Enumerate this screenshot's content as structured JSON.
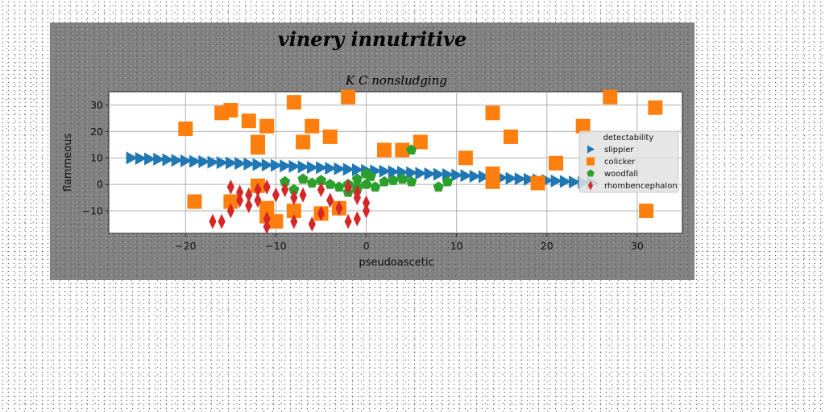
{
  "figure_title": "vinery innutritive",
  "chart_data": {
    "type": "scatter",
    "title": "K C nonsludging",
    "xlabel": "pseudoascetic",
    "ylabel": "flammeous",
    "xlim": [
      -28.5,
      35
    ],
    "ylim": [
      -18.5,
      35
    ],
    "xticks": [
      -20,
      -10,
      0,
      10,
      20,
      30
    ],
    "yticks": [
      -10,
      0,
      10,
      20,
      30
    ],
    "grid": true,
    "legend": {
      "title": "detectability",
      "placement": "center-right"
    },
    "colors": {
      "figure_bg": "#808080",
      "plot_bg": "#ffffff",
      "grid": "#b0b0b0"
    },
    "series": [
      {
        "name": "slippier",
        "marker": "triangle-right",
        "color": "#1f77b4",
        "points": [
          [
            -26,
            10
          ],
          [
            -25,
            9.8
          ],
          [
            -24,
            9.6
          ],
          [
            -23,
            9.5
          ],
          [
            -22,
            9.3
          ],
          [
            -21,
            9.1
          ],
          [
            -20,
            8.9
          ],
          [
            -19,
            8.7
          ],
          [
            -18,
            8.6
          ],
          [
            -17,
            8.4
          ],
          [
            -16,
            8.2
          ],
          [
            -15,
            8.1
          ],
          [
            -14,
            7.9
          ],
          [
            -13,
            7.7
          ],
          [
            -12,
            7.5
          ],
          [
            -11,
            7.3
          ],
          [
            -10,
            7.2
          ],
          [
            -9,
            7.0
          ],
          [
            -8,
            6.8
          ],
          [
            -7,
            6.6
          ],
          [
            -6,
            6.4
          ],
          [
            -5,
            6.3
          ],
          [
            -4,
            6.1
          ],
          [
            -3,
            5.9
          ],
          [
            -2,
            5.7
          ],
          [
            -1,
            5.5
          ],
          [
            0,
            5.3
          ],
          [
            1,
            5.1
          ],
          [
            2,
            5.0
          ],
          [
            3,
            4.8
          ],
          [
            4,
            4.6
          ],
          [
            5,
            4.4
          ],
          [
            6,
            4.2
          ],
          [
            7,
            4.0
          ],
          [
            8,
            3.8
          ],
          [
            9,
            3.7
          ],
          [
            10,
            3.5
          ],
          [
            11,
            3.3
          ],
          [
            12,
            3.1
          ],
          [
            13,
            2.9
          ],
          [
            14,
            2.7
          ],
          [
            15,
            2.5
          ],
          [
            16,
            2.3
          ],
          [
            17,
            2.1
          ],
          [
            18,
            1.9
          ],
          [
            19,
            1.7
          ],
          [
            20,
            1.5
          ],
          [
            21,
            1.3
          ],
          [
            22,
            1.1
          ],
          [
            23,
            0.9
          ],
          [
            24,
            0.7
          ],
          [
            25,
            0.5
          ]
        ]
      },
      {
        "name": "colicker",
        "marker": "square",
        "color": "#ff7f0e",
        "points": [
          [
            -20,
            21
          ],
          [
            -16,
            27
          ],
          [
            -15,
            28
          ],
          [
            -13,
            24
          ],
          [
            -11,
            22
          ],
          [
            -12,
            16
          ],
          [
            -12,
            14
          ],
          [
            -8,
            31
          ],
          [
            -7,
            16
          ],
          [
            -6,
            22
          ],
          [
            -4,
            18
          ],
          [
            -2,
            33
          ],
          [
            2,
            13
          ],
          [
            4,
            13
          ],
          [
            6,
            16
          ],
          [
            11,
            10
          ],
          [
            14,
            27
          ],
          [
            14,
            4
          ],
          [
            14,
            1
          ],
          [
            16,
            18
          ],
          [
            19,
            0.5
          ],
          [
            21,
            8
          ],
          [
            24,
            22
          ],
          [
            27,
            33
          ],
          [
            31,
            -10
          ],
          [
            32,
            29
          ],
          [
            -19,
            -6.5
          ],
          [
            -15,
            -6.5
          ],
          [
            -12,
            -0.5
          ],
          [
            -11,
            -9
          ],
          [
            -11,
            -12
          ],
          [
            -10,
            -14
          ],
          [
            -8,
            -10
          ],
          [
            -5,
            -11
          ],
          [
            -3,
            -9
          ]
        ]
      },
      {
        "name": "woodfall",
        "marker": "pentagon",
        "color": "#2ca02c",
        "points": [
          [
            -9,
            1
          ],
          [
            -7,
            2
          ],
          [
            -6,
            0.5
          ],
          [
            -5,
            1.5
          ],
          [
            -4,
            0
          ],
          [
            -3,
            -1
          ],
          [
            -2,
            -3
          ],
          [
            -1,
            2
          ],
          [
            0,
            4
          ],
          [
            -1,
            -2
          ],
          [
            0,
            0
          ],
          [
            1,
            -1
          ],
          [
            2,
            1
          ],
          [
            3,
            1.5
          ],
          [
            4,
            2
          ],
          [
            5,
            1
          ],
          [
            8,
            -1
          ],
          [
            9,
            1
          ],
          [
            -8,
            -2
          ],
          [
            -2,
            0
          ],
          [
            -1,
            -1
          ],
          [
            0.5,
            3
          ],
          [
            5,
            13
          ]
        ]
      },
      {
        "name": "rhombencephalon",
        "marker": "thin-diamond",
        "color": "#d62728",
        "points": [
          [
            -17,
            -14
          ],
          [
            -16,
            -14
          ],
          [
            -15,
            -1
          ],
          [
            -15,
            -10
          ],
          [
            -14,
            -3
          ],
          [
            -14,
            -6
          ],
          [
            -13,
            -4
          ],
          [
            -13,
            -8
          ],
          [
            -12,
            -6
          ],
          [
            -12,
            -2
          ],
          [
            -11,
            -1
          ],
          [
            -11,
            -13
          ],
          [
            -11,
            -16
          ],
          [
            -10,
            -4
          ],
          [
            -8,
            -14
          ],
          [
            -8,
            -5
          ],
          [
            -7,
            -4
          ],
          [
            -6,
            -15
          ],
          [
            -5,
            -11
          ],
          [
            -5,
            -2
          ],
          [
            -4,
            -6
          ],
          [
            -3,
            -9
          ],
          [
            -2,
            -1
          ],
          [
            -2,
            -14
          ],
          [
            -1,
            -13
          ],
          [
            -1,
            -5
          ],
          [
            0,
            -7
          ],
          [
            0,
            -10
          ],
          [
            -1,
            -3
          ],
          [
            -9,
            -2
          ]
        ]
      }
    ]
  }
}
